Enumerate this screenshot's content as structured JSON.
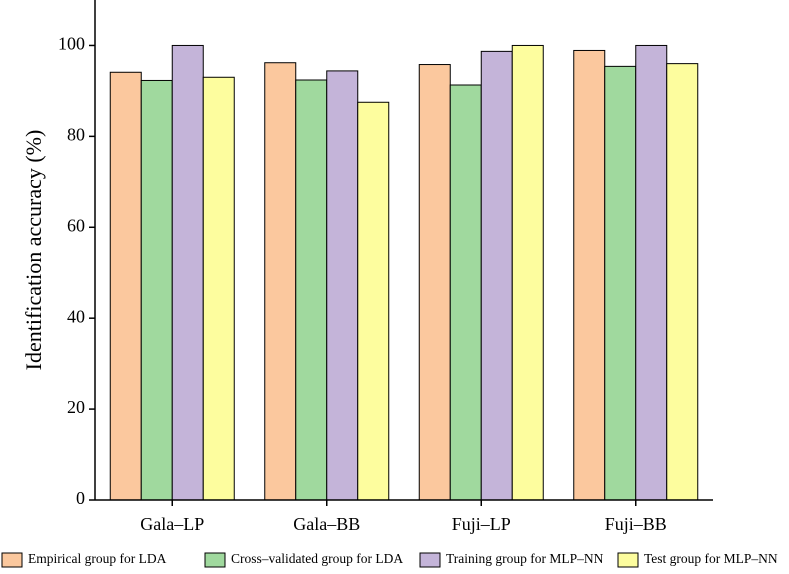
{
  "chart_data": {
    "type": "bar",
    "y_label": "Identification accuracy (%)",
    "categories": [
      "Gala–LP",
      "Gala–BB",
      "Fuji–LP",
      "Fuji–BB"
    ],
    "series": [
      {
        "name": "Empirical group for LDA",
        "color": "#fbc89e",
        "values": [
          94.1,
          96.2,
          95.8,
          98.9
        ]
      },
      {
        "name": "Cross–validated group for LDA",
        "color": "#a0d99e",
        "values": [
          92.3,
          92.4,
          91.3,
          95.4
        ]
      },
      {
        "name": "Training group for MLP–NN",
        "color": "#c4b4d9",
        "values": [
          100,
          94.4,
          98.7,
          100
        ]
      },
      {
        "name": "Test group  for MLP–NN",
        "color": "#fdfd9e",
        "values": [
          93.0,
          87.5,
          100,
          96.0
        ]
      }
    ],
    "ylim": [
      0,
      110
    ],
    "yticks": [
      0,
      20,
      40,
      60,
      80,
      100
    ],
    "grid": false,
    "legend": "bottom"
  }
}
